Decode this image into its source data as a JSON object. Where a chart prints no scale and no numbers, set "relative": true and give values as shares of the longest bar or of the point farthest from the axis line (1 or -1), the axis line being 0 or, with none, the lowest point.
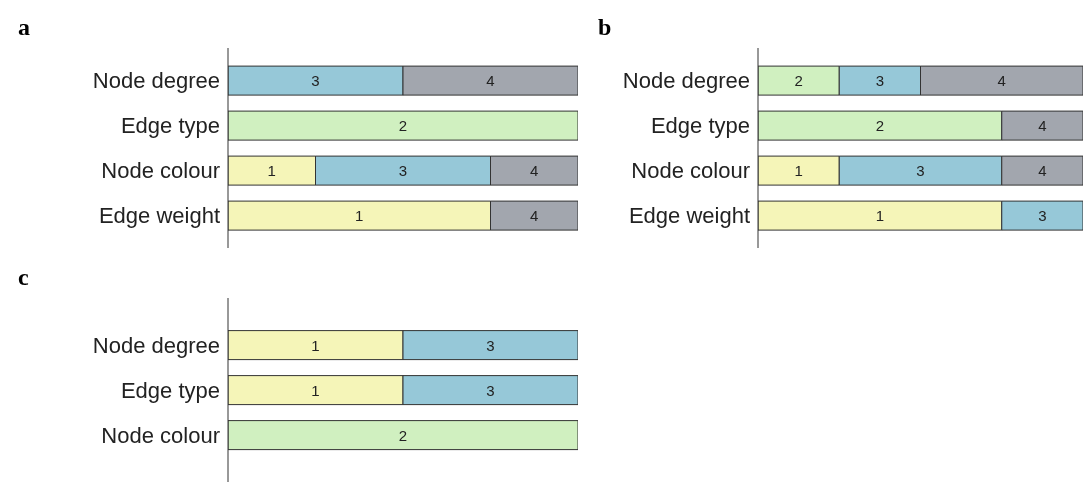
{
  "chart_data": [
    {
      "type": "bar",
      "title": "a",
      "orientation": "horizontal",
      "stacked": true,
      "relative": true,
      "categories": [
        "Node degree",
        "Edge type",
        "Node colour",
        "Edge weight"
      ],
      "series": [
        {
          "name": "1",
          "color": "#f5f5b8",
          "values": [
            null,
            null,
            0.25,
            0.75
          ]
        },
        {
          "name": "2",
          "color": "#d0f0c0",
          "values": [
            null,
            1,
            null,
            null
          ]
        },
        {
          "name": "3",
          "color": "#96c8d8",
          "values": [
            0.5,
            null,
            0.5,
            null
          ]
        },
        {
          "name": "4",
          "color": "#a2a6ae",
          "values": [
            0.5,
            null,
            0.25,
            0.25
          ]
        }
      ]
    },
    {
      "type": "bar",
      "title": "b",
      "orientation": "horizontal",
      "stacked": true,
      "relative": true,
      "categories": [
        "Node degree",
        "Edge type",
        "Node colour",
        "Edge weight"
      ],
      "series": [
        {
          "name": "1",
          "color": "#f5f5b8",
          "values": [
            null,
            null,
            0.25,
            0.75
          ]
        },
        {
          "name": "2",
          "color": "#d0f0c0",
          "values": [
            0.25,
            0.75,
            null,
            null
          ]
        },
        {
          "name": "3",
          "color": "#96c8d8",
          "values": [
            0.25,
            null,
            0.5,
            0.25
          ]
        },
        {
          "name": "4",
          "color": "#a2a6ae",
          "values": [
            0.5,
            0.25,
            0.25,
            null
          ]
        }
      ]
    },
    {
      "type": "bar",
      "title": "c",
      "orientation": "horizontal",
      "stacked": true,
      "relative": true,
      "categories": [
        "Node degree",
        "Edge type",
        "Node colour"
      ],
      "series": [
        {
          "name": "1",
          "color": "#f5f5b8",
          "values": [
            0.5,
            0.5,
            null
          ]
        },
        {
          "name": "2",
          "color": "#d0f0c0",
          "values": [
            null,
            null,
            1
          ]
        },
        {
          "name": "3",
          "color": "#96c8d8",
          "values": [
            0.5,
            0.5,
            null
          ]
        }
      ]
    }
  ]
}
